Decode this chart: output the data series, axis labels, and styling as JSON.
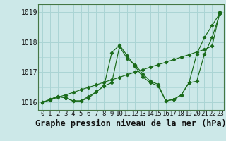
{
  "title": "Graphe pression niveau de la mer (hPa)",
  "hours": [
    0,
    1,
    2,
    3,
    4,
    5,
    6,
    7,
    8,
    9,
    10,
    11,
    12,
    13,
    14,
    15,
    16,
    17,
    18,
    19,
    20,
    21,
    22,
    23
  ],
  "line_straight": [
    1016.0,
    1016.08,
    1016.17,
    1016.25,
    1016.33,
    1016.42,
    1016.5,
    1016.58,
    1016.67,
    1016.75,
    1016.83,
    1016.92,
    1017.0,
    1017.08,
    1017.17,
    1017.25,
    1017.33,
    1017.42,
    1017.5,
    1017.58,
    1017.67,
    1017.75,
    1017.87,
    1019.0
  ],
  "line_zigzag1": [
    1016.0,
    1016.1,
    1016.2,
    1016.15,
    1016.05,
    1016.05,
    1016.15,
    1016.35,
    1016.55,
    1016.65,
    1017.85,
    1017.45,
    1017.25,
    1016.95,
    1016.7,
    1016.6,
    1016.05,
    1016.1,
    1016.25,
    1016.65,
    1017.6,
    1018.15,
    1018.55,
    1018.95
  ],
  "line_zigzag2": [
    1016.0,
    1016.1,
    1016.2,
    1016.15,
    1016.05,
    1016.05,
    1016.2,
    1016.35,
    1016.55,
    1017.65,
    1017.9,
    1017.55,
    1017.2,
    1016.85,
    1016.65,
    1016.55,
    1016.05,
    1016.1,
    1016.25,
    1016.65,
    1016.7,
    1017.6,
    1018.15,
    1018.95
  ],
  "line_color": "#1a6b1a",
  "bg_color": "#cce8e8",
  "grid_color": "#aad4d4",
  "ylim": [
    1015.75,
    1019.25
  ],
  "yticks": [
    1016,
    1017,
    1018,
    1019
  ],
  "title_fontsize": 8.5,
  "tick_fontsize": 6.5
}
